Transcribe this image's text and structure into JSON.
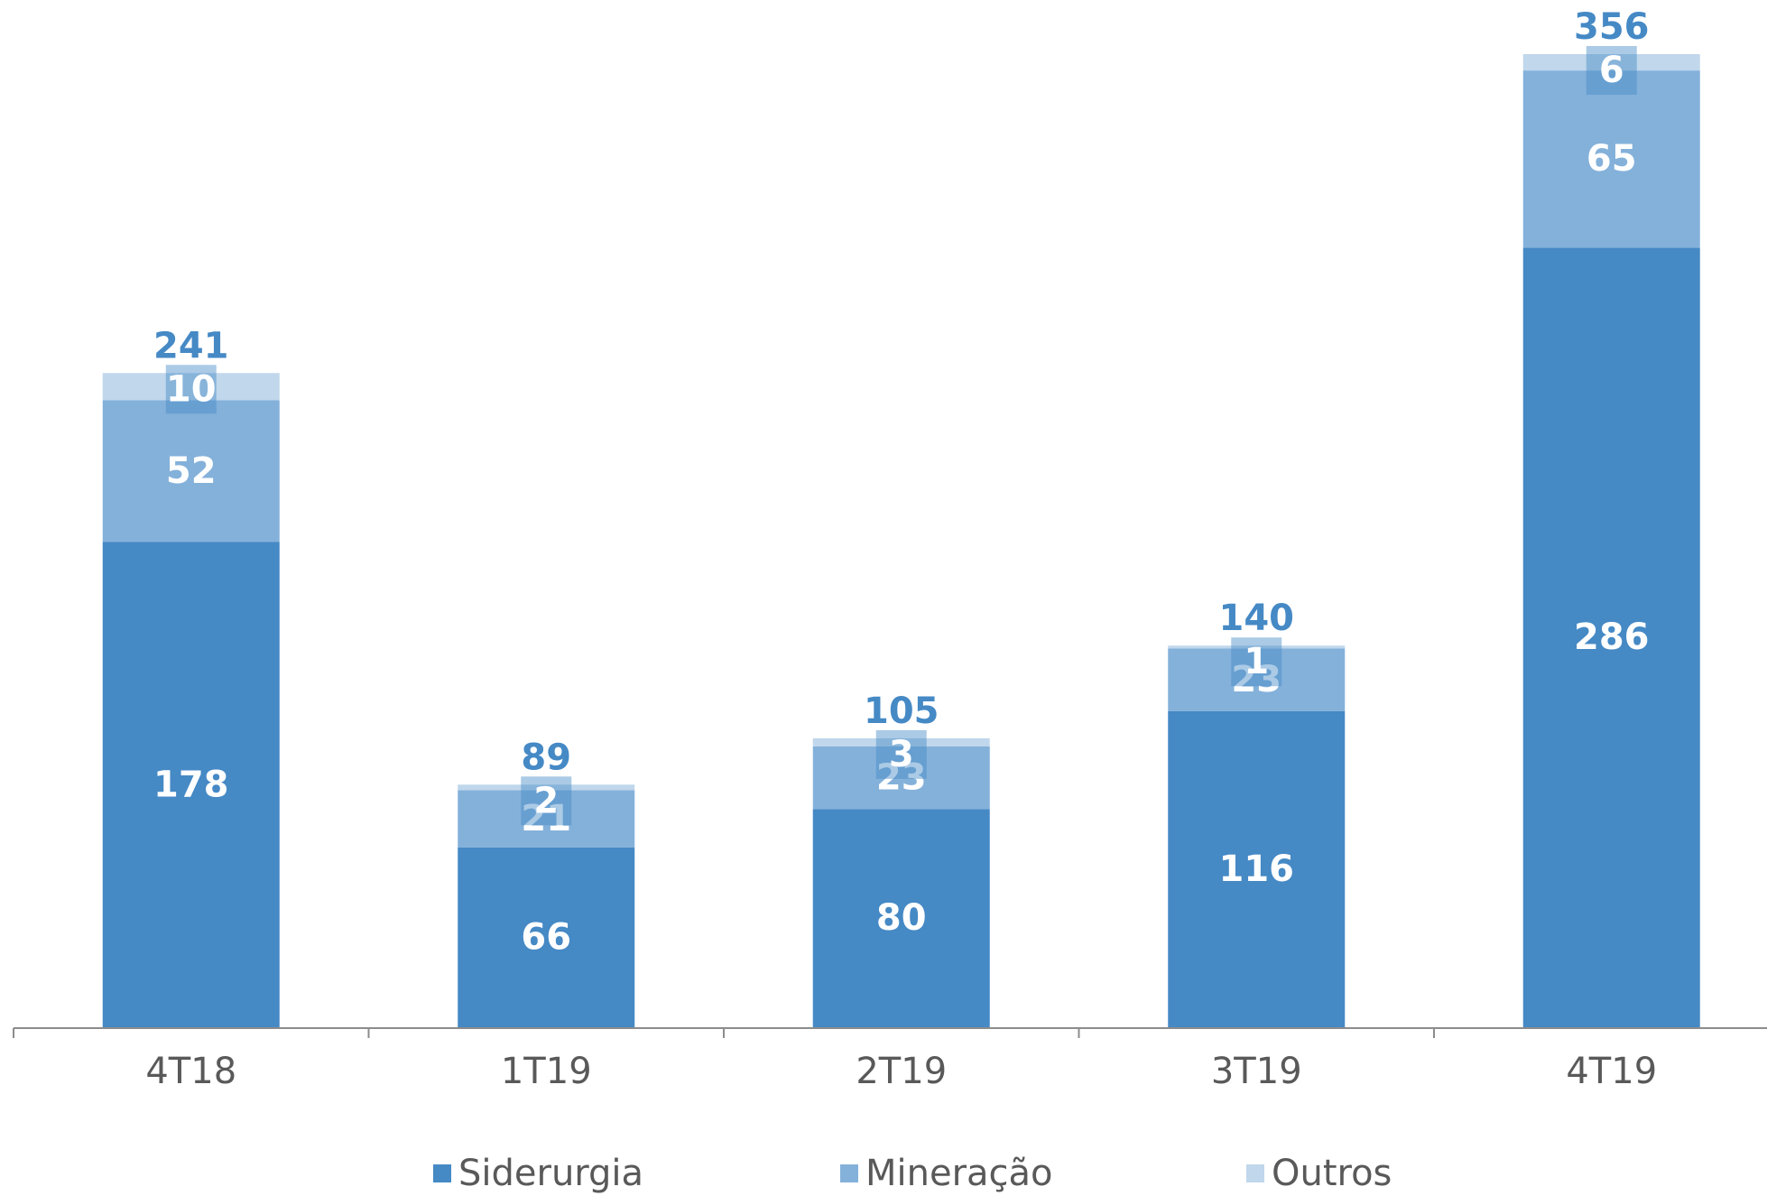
{
  "chart_data": {
    "type": "bar",
    "stacked": true,
    "categories": [
      "4T18",
      "1T19",
      "2T19",
      "3T19",
      "4T19"
    ],
    "series": [
      {
        "name": "Siderurgia",
        "values": [
          178,
          66,
          80,
          116,
          286
        ],
        "color": "#4589C5"
      },
      {
        "name": "Mineração",
        "values": [
          52,
          21,
          23,
          23,
          65
        ],
        "color": "#84B1DA"
      },
      {
        "name": "Outros",
        "values": [
          10,
          2,
          3,
          1,
          6
        ],
        "color": "#C0D7EC"
      }
    ],
    "totals": [
      241,
      89,
      105,
      140,
      356
    ],
    "ylim": [
      0,
      356
    ],
    "grid": false,
    "legend_position": "bottom"
  }
}
